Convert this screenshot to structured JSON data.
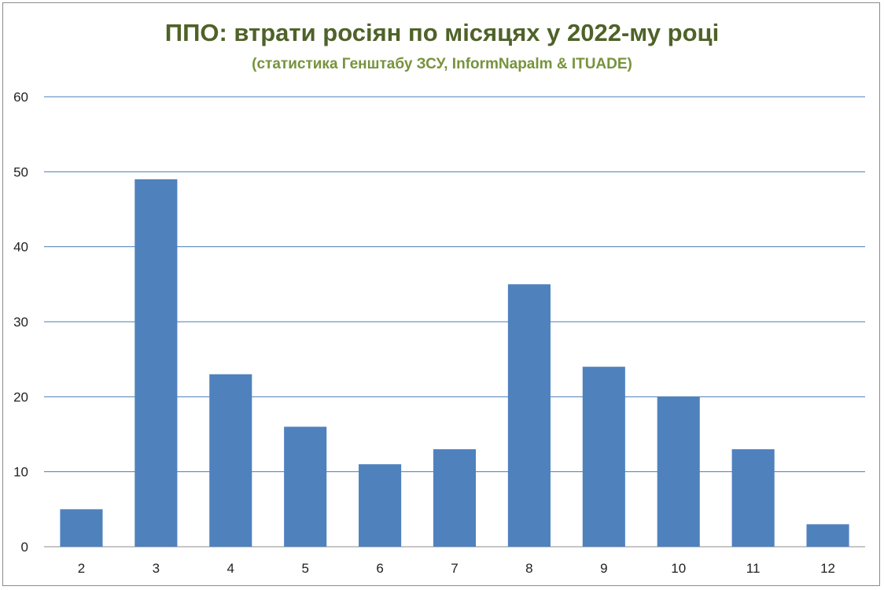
{
  "chart_data": {
    "type": "bar",
    "title": "ППО: втрати росіян по місяцях у 2022-му році",
    "subtitle": "(статистика Генштабу ЗСУ, InformNapalm & ITUADE)",
    "categories": [
      "2",
      "3",
      "4",
      "5",
      "6",
      "7",
      "8",
      "9",
      "10",
      "11",
      "12"
    ],
    "series": [
      {
        "values": [
          5,
          49,
          23,
          16,
          11,
          13,
          35,
          24,
          20,
          13,
          3
        ],
        "color": "#4f81bd"
      }
    ],
    "xlabel": "",
    "ylabel": "",
    "ylim": [
      0,
      60
    ],
    "yticks": [
      0,
      10,
      20,
      30,
      40,
      50,
      60
    ],
    "grid": true,
    "legend": "none",
    "colors": {
      "bar": "#4f81bd",
      "gridline": "#4a7ebb",
      "title": "#4f6228",
      "subtitle": "#77933c"
    }
  }
}
